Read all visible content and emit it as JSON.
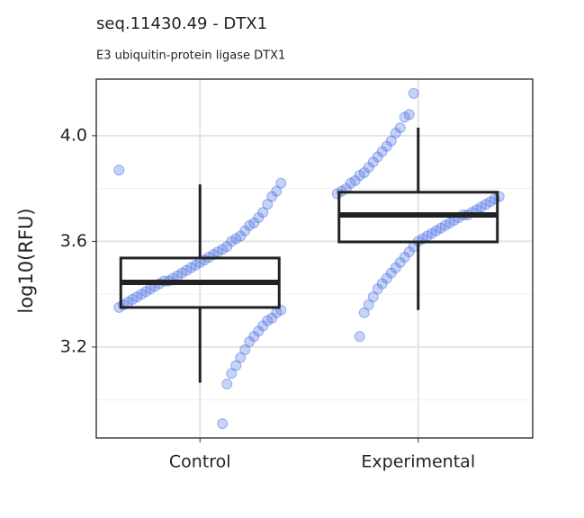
{
  "chart_data": {
    "type": "box",
    "title": "seq.11430.49 - DTX1",
    "subtitle": "E3 ubiquitin-protein ligase DTX1",
    "y_label": "log10(RFU)",
    "categories": [
      "Control",
      "Experimental"
    ],
    "boxes": [
      {
        "whisker_low": 3.065,
        "q1": 3.35,
        "median": 3.445,
        "q3": 3.537,
        "whisker_high": 3.816
      },
      {
        "whisker_low": 3.34,
        "q1": 3.598,
        "median": 3.7,
        "q3": 3.786,
        "whisker_high": 4.03
      }
    ],
    "points": [
      [
        3.87,
        3.82,
        3.79,
        3.77,
        3.74,
        3.71,
        3.69,
        3.67,
        3.66,
        3.64,
        3.62,
        3.61,
        3.6,
        3.58,
        3.57,
        3.56,
        3.55,
        3.54,
        3.53,
        3.52,
        3.51,
        3.5,
        3.49,
        3.48,
        3.47,
        3.46,
        3.45,
        3.45,
        3.44,
        3.43,
        3.42,
        3.41,
        3.4,
        3.39,
        3.38,
        3.37,
        3.36,
        3.35,
        3.34,
        3.33,
        3.31,
        3.3,
        3.28,
        3.26,
        3.24,
        3.22,
        3.19,
        3.16,
        3.13,
        3.1,
        3.06,
        2.91
      ],
      [
        4.16,
        4.08,
        4.07,
        4.03,
        4.01,
        3.98,
        3.96,
        3.94,
        3.92,
        3.9,
        3.88,
        3.86,
        3.85,
        3.83,
        3.82,
        3.8,
        3.79,
        3.78,
        3.77,
        3.76,
        3.75,
        3.74,
        3.73,
        3.72,
        3.71,
        3.7,
        3.7,
        3.69,
        3.68,
        3.67,
        3.66,
        3.65,
        3.64,
        3.63,
        3.62,
        3.61,
        3.6,
        3.58,
        3.56,
        3.54,
        3.52,
        3.5,
        3.48,
        3.46,
        3.44,
        3.42,
        3.39,
        3.36,
        3.33,
        3.24
      ]
    ],
    "point_color": "#4169e1",
    "box_color": "#222222",
    "ylim": [
      2.856,
      4.214
    ],
    "yticks": [
      3.2,
      3.6,
      {
        "value": 4,
        "label": "4.0"
      }
    ],
    "minor_yticks": [
      3.0,
      3.4,
      3.8
    ],
    "grid": true
  }
}
